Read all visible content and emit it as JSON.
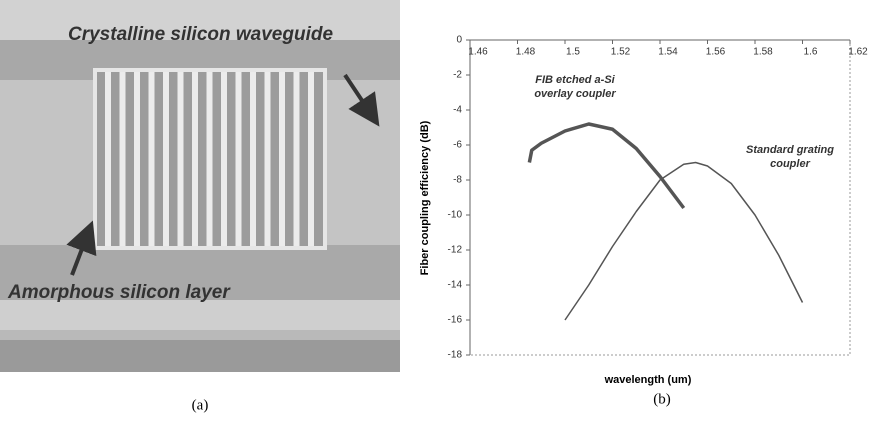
{
  "panel_a": {
    "labels": [
      "Crystalline silicon waveguide",
      "Amorphous silicon layer"
    ]
  },
  "captions": [
    "(a)",
    "(b)"
  ],
  "chart_data": {
    "type": "line",
    "y_label": "Fiber coupling efficiency (dB)",
    "x_label": "wavelength (um)",
    "annotations": [
      [
        "FIB etched a-Si",
        "overlay coupler"
      ],
      [
        "Standard grating",
        "coupler"
      ]
    ],
    "xlim": [
      1.46,
      1.62
    ],
    "xticks": [
      1.46,
      1.48,
      1.5,
      1.52,
      1.54,
      1.56,
      1.58,
      1.6,
      1.62
    ],
    "ylim": [
      -18,
      0
    ],
    "yticks": [
      0,
      -2,
      -4,
      -6,
      -8,
      -10,
      -12,
      -14,
      -16,
      -18
    ],
    "series": [
      {
        "name": "FIB etched a-Si overlay coupler",
        "color": "#555555",
        "x": [
          1.485,
          1.486,
          1.49,
          1.5,
          1.51,
          1.52,
          1.53,
          1.54,
          1.55
        ],
        "values": [
          -7.0,
          -6.3,
          -5.9,
          -5.2,
          -4.8,
          -5.1,
          -6.2,
          -7.8,
          -9.6
        ]
      },
      {
        "name": "Standard grating coupler",
        "color": "#555555",
        "x": [
          1.5,
          1.51,
          1.52,
          1.53,
          1.54,
          1.55,
          1.555,
          1.56,
          1.57,
          1.58,
          1.59,
          1.6
        ],
        "values": [
          -16,
          -14,
          -11.8,
          -9.8,
          -8.0,
          -7.1,
          -7.0,
          -7.2,
          -8.2,
          -10,
          -12.3,
          -15
        ]
      }
    ]
  }
}
